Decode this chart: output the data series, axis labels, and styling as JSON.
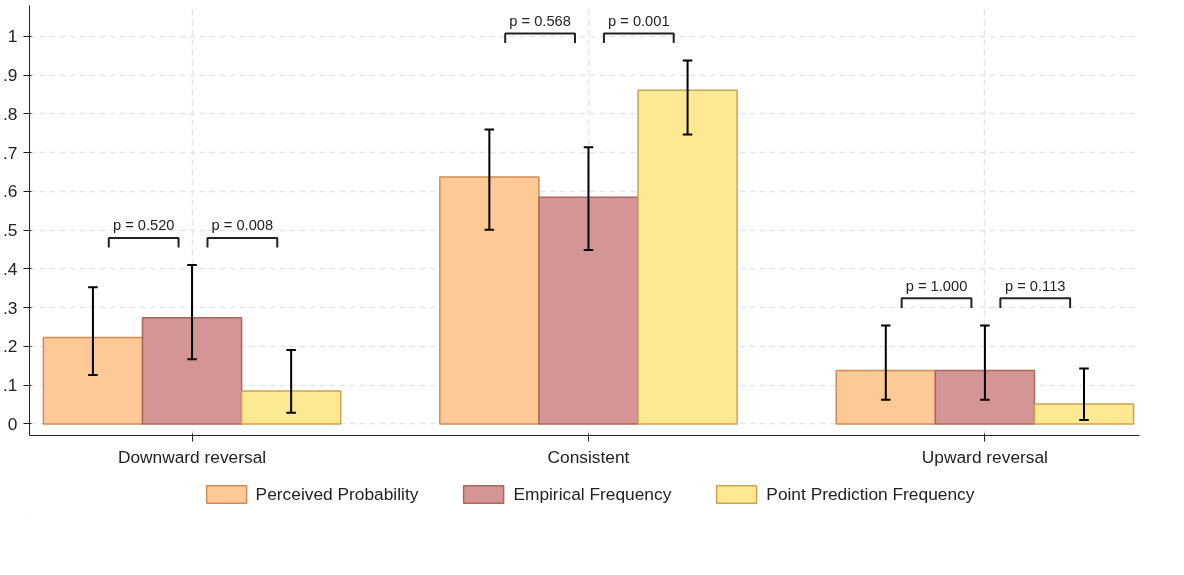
{
  "chart_data": {
    "type": "bar",
    "categories": [
      "Downward reversal",
      "Consistent",
      "Upward reversal"
    ],
    "series": [
      {
        "name": "Perceived Probability",
        "color": "#fcc997",
        "values": [
          0.223,
          0.637,
          0.138
        ],
        "errors": [
          [
            0.126,
            0.353
          ],
          [
            0.501,
            0.76
          ],
          [
            0.062,
            0.254
          ]
        ]
      },
      {
        "name": "Empirical Frequency",
        "color": "#d49597",
        "values": [
          0.274,
          0.585,
          0.138
        ],
        "errors": [
          [
            0.167,
            0.41
          ],
          [
            0.449,
            0.714
          ],
          [
            0.062,
            0.254
          ]
        ]
      },
      {
        "name": "Point Prediction Frequency",
        "color": "#fde991",
        "values": [
          0.085,
          0.861,
          0.051
        ],
        "errors": [
          [
            0.029,
            0.191
          ],
          [
            0.747,
            0.938
          ],
          [
            0.01,
            0.143
          ]
        ]
      }
    ],
    "ylim": [
      -0.03,
      1.08
    ],
    "yticks": [
      0,
      {
        "value": 0.1,
        "label": ".1"
      },
      {
        "value": 0.2,
        "label": ".2"
      },
      {
        "value": 0.3,
        "label": ".3"
      },
      {
        "value": 0.4,
        "label": ".4"
      },
      {
        "value": 0.5,
        "label": ".5"
      },
      {
        "value": 0.6,
        "label": ".6"
      },
      {
        "value": 0.7,
        "label": ".7"
      },
      {
        "value": 0.8,
        "label": ".8"
      },
      {
        "value": 0.9,
        "label": ".9"
      },
      1
    ],
    "annotations": [
      "p = 0.520",
      "p = 0.008",
      "p = 0.568",
      "p = 0.001",
      "p = 1.000",
      "p = 0.113"
    ],
    "grid": true,
    "legend": "bottom"
  }
}
